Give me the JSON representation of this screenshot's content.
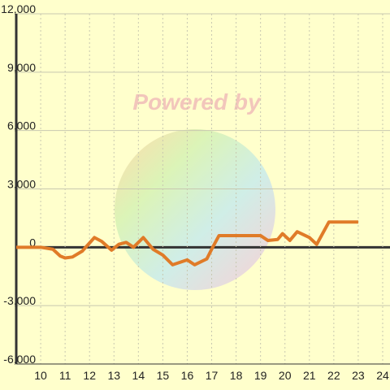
{
  "chart_data": {
    "type": "line",
    "annotation": "Powered by",
    "x": [
      9,
      9.5,
      10,
      10.5,
      10.8,
      11,
      11.3,
      11.7,
      12.2,
      12.5,
      12.9,
      13.2,
      13.5,
      13.8,
      14.2,
      14.6,
      15,
      15.4,
      16,
      16.3,
      16.8,
      17,
      17.3,
      17.5,
      18,
      19,
      19.3,
      19.7,
      19.9,
      20.2,
      20.5,
      21,
      21.3,
      21.8,
      22,
      23
    ],
    "series": [
      {
        "color": "#e07b28",
        "values": [
          0,
          0,
          0,
          -100,
          -450,
          -550,
          -500,
          -200,
          500,
          300,
          -150,
          150,
          250,
          0,
          500,
          -100,
          -400,
          -900,
          -650,
          -900,
          -600,
          -100,
          600,
          600,
          600,
          600,
          350,
          400,
          700,
          350,
          800,
          500,
          150,
          1300,
          1300,
          1300
        ]
      }
    ],
    "xlim": [
      9,
      24.3
    ],
    "xticks": [
      10,
      11,
      12,
      13,
      14,
      15,
      16,
      17,
      18,
      19,
      20,
      21,
      22,
      23,
      24
    ],
    "ylim": [
      -6000,
      12000
    ],
    "yticks": [
      {
        "value": -6000,
        "label": "-6,000"
      },
      {
        "value": -3000,
        "label": "-3,000"
      },
      0,
      {
        "value": 3000,
        "label": "3,000"
      },
      {
        "value": 6000,
        "label": "6,000"
      },
      {
        "value": 9000,
        "label": "9,000"
      },
      {
        "value": 12000,
        "label": "12,000"
      }
    ],
    "grid": true
  }
}
